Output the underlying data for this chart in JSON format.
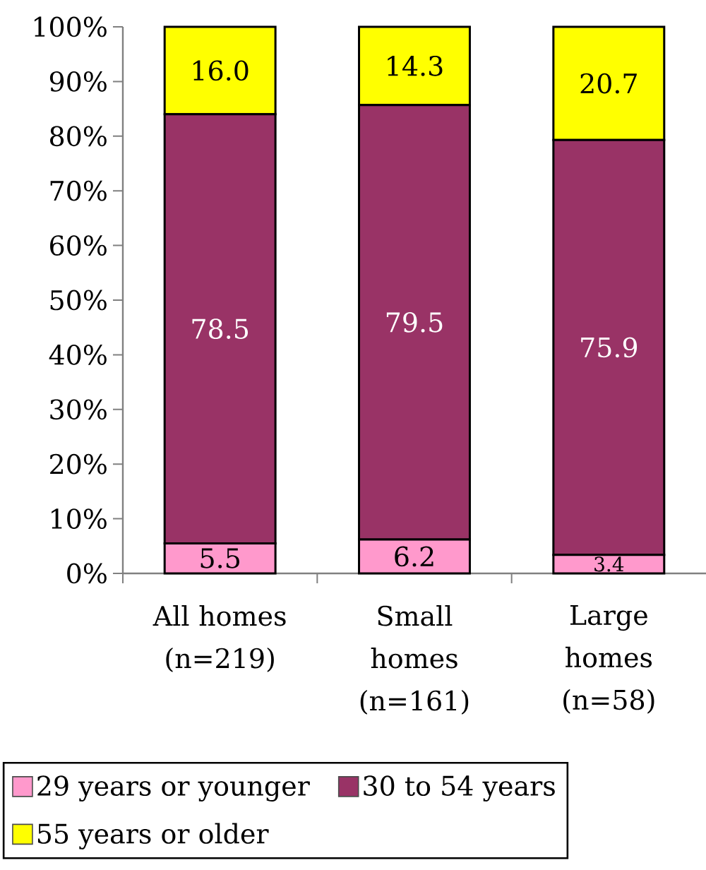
{
  "chart_data": {
    "type": "bar",
    "stacked": true,
    "categories": [
      "All homes (n=219)",
      "Small homes (n=161)",
      "Large homes (n=58)"
    ],
    "series": [
      {
        "name": "29 years or younger",
        "color": "#ff99cc",
        "values": [
          5.5,
          6.2,
          3.4
        ],
        "value_labels": [
          "5.5",
          "6.2",
          "3.4"
        ]
      },
      {
        "name": "30 to 54 years",
        "color": "#993366",
        "values": [
          78.5,
          79.5,
          75.9
        ],
        "value_labels": [
          "78.5",
          "79.5",
          "75.9"
        ]
      },
      {
        "name": "55 years or older",
        "color": "#ffff00",
        "values": [
          16.0,
          14.3,
          20.7
        ],
        "value_labels": [
          "16.0",
          "14.3",
          "20.7"
        ]
      }
    ],
    "ylim": [
      0,
      100
    ],
    "yticks": [
      {
        "value": 0,
        "label": "0%"
      },
      {
        "value": 10,
        "label": "10%"
      },
      {
        "value": 20,
        "label": "20%"
      },
      {
        "value": 30,
        "label": "30%"
      },
      {
        "value": 40,
        "label": "40%"
      },
      {
        "value": 50,
        "label": "50%"
      },
      {
        "value": 60,
        "label": "60%"
      },
      {
        "value": 70,
        "label": "70%"
      },
      {
        "value": 80,
        "label": "80%"
      },
      {
        "value": 90,
        "label": "90%"
      },
      {
        "value": 100,
        "label": "100%"
      }
    ],
    "legend": "bottom",
    "grid": false
  }
}
